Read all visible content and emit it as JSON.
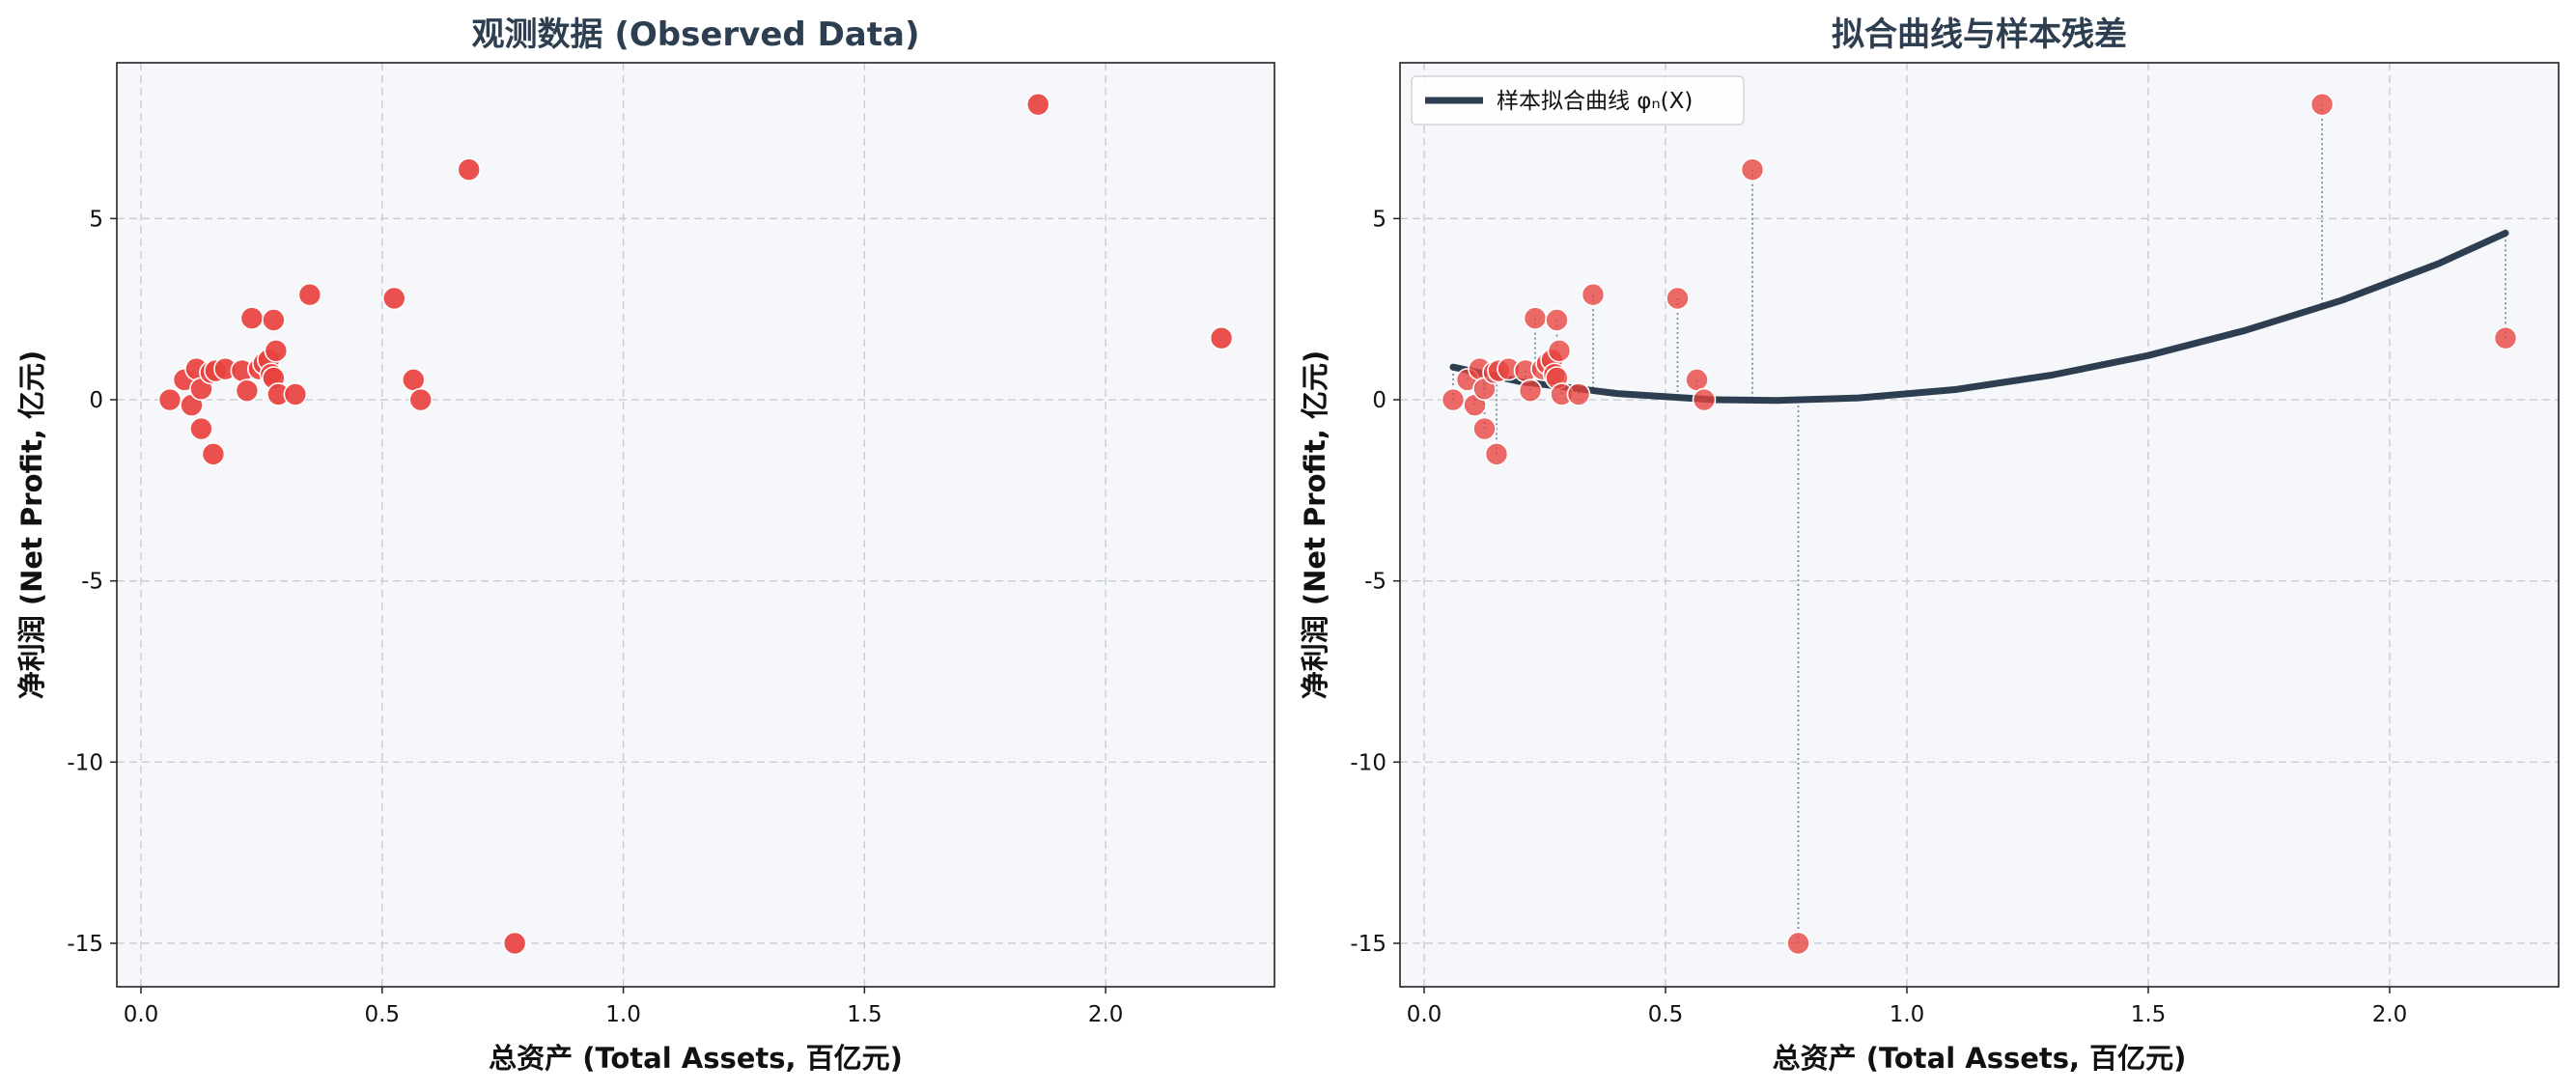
{
  "colors": {
    "point": "#e8423f",
    "point_edge": "#ffffff",
    "curve": "#2c3e50",
    "residual": "#7f8c9a",
    "panel_bg": "#f5f7fa",
    "grid": "#c9ccd1"
  },
  "chart_data": [
    {
      "type": "scatter",
      "title": "观测数据 (Observed Data)",
      "xlabel": "总资产 (Total Assets, 百亿元)",
      "ylabel": "净利润 (Net Profit, 亿元)",
      "xlim": [
        -0.05,
        2.35
      ],
      "ylim": [
        -16.2,
        9.3
      ],
      "xticks": [
        0.0,
        0.5,
        1.0,
        1.5,
        2.0
      ],
      "xtick_labels": [
        "0.0",
        "0.5",
        "1.0",
        "1.5",
        "2.0"
      ],
      "yticks": [
        5,
        0,
        -5,
        -10,
        -15
      ],
      "ytick_labels": [
        "5",
        "0",
        "-5",
        "-10",
        "-15"
      ],
      "grid": true,
      "series": [
        {
          "points": [
            [
              0.06,
              0.0
            ],
            [
              0.09,
              0.55
            ],
            [
              0.105,
              -0.15
            ],
            [
              0.115,
              0.85
            ],
            [
              0.125,
              0.3
            ],
            [
              0.125,
              -0.8
            ],
            [
              0.145,
              0.75
            ],
            [
              0.15,
              -1.5
            ],
            [
              0.155,
              0.8
            ],
            [
              0.175,
              0.85
            ],
            [
              0.21,
              0.8
            ],
            [
              0.22,
              0.25
            ],
            [
              0.23,
              2.25
            ],
            [
              0.245,
              0.85
            ],
            [
              0.255,
              1.0
            ],
            [
              0.265,
              1.1
            ],
            [
              0.27,
              0.7
            ],
            [
              0.275,
              0.6
            ],
            [
              0.275,
              2.2
            ],
            [
              0.28,
              1.35
            ],
            [
              0.285,
              0.15
            ],
            [
              0.32,
              0.15
            ],
            [
              0.35,
              2.9
            ],
            [
              0.525,
              2.8
            ],
            [
              0.565,
              0.55
            ],
            [
              0.58,
              0.0
            ],
            [
              0.68,
              6.35
            ],
            [
              0.775,
              -15.0
            ],
            [
              1.86,
              8.15
            ],
            [
              2.24,
              1.7
            ]
          ]
        }
      ]
    },
    {
      "type": "scatter",
      "title": "拟合曲线与样本残差",
      "xlabel": "总资产 (Total Assets, 百亿元)",
      "ylabel": "净利润 (Net Profit, 亿元)",
      "xlim": [
        -0.05,
        2.35
      ],
      "ylim": [
        -16.2,
        9.3
      ],
      "xticks": [
        0.0,
        0.5,
        1.0,
        1.5,
        2.0
      ],
      "xtick_labels": [
        "0.0",
        "0.5",
        "1.0",
        "1.5",
        "2.0"
      ],
      "yticks": [
        5,
        0,
        -5,
        -10,
        -15
      ],
      "ytick_labels": [
        "5",
        "0",
        "-5",
        "-10",
        "-15"
      ],
      "grid": true,
      "legend": {
        "position": "top-left",
        "label": "样本拟合曲线 φₙ(X)"
      },
      "fitted_curve": {
        "x": [
          0.06,
          0.2,
          0.4,
          0.6,
          0.73,
          0.9,
          1.1,
          1.3,
          1.5,
          1.7,
          1.9,
          2.1,
          2.24
        ],
        "y": [
          0.9,
          0.5,
          0.17,
          0.0,
          -0.02,
          0.05,
          0.28,
          0.68,
          1.22,
          1.91,
          2.74,
          3.75,
          4.6
        ]
      },
      "residual_lines": true,
      "series": [
        {
          "points": [
            [
              0.06,
              0.0
            ],
            [
              0.09,
              0.55
            ],
            [
              0.105,
              -0.15
            ],
            [
              0.115,
              0.85
            ],
            [
              0.125,
              0.3
            ],
            [
              0.125,
              -0.8
            ],
            [
              0.145,
              0.75
            ],
            [
              0.15,
              -1.5
            ],
            [
              0.155,
              0.8
            ],
            [
              0.175,
              0.85
            ],
            [
              0.21,
              0.8
            ],
            [
              0.22,
              0.25
            ],
            [
              0.23,
              2.25
            ],
            [
              0.245,
              0.85
            ],
            [
              0.255,
              1.0
            ],
            [
              0.265,
              1.1
            ],
            [
              0.27,
              0.7
            ],
            [
              0.275,
              0.6
            ],
            [
              0.275,
              2.2
            ],
            [
              0.28,
              1.35
            ],
            [
              0.285,
              0.15
            ],
            [
              0.32,
              0.15
            ],
            [
              0.35,
              2.9
            ],
            [
              0.525,
              2.8
            ],
            [
              0.565,
              0.55
            ],
            [
              0.58,
              0.0
            ],
            [
              0.68,
              6.35
            ],
            [
              0.775,
              -15.0
            ],
            [
              1.86,
              8.15
            ],
            [
              2.24,
              1.7
            ]
          ]
        }
      ]
    }
  ]
}
